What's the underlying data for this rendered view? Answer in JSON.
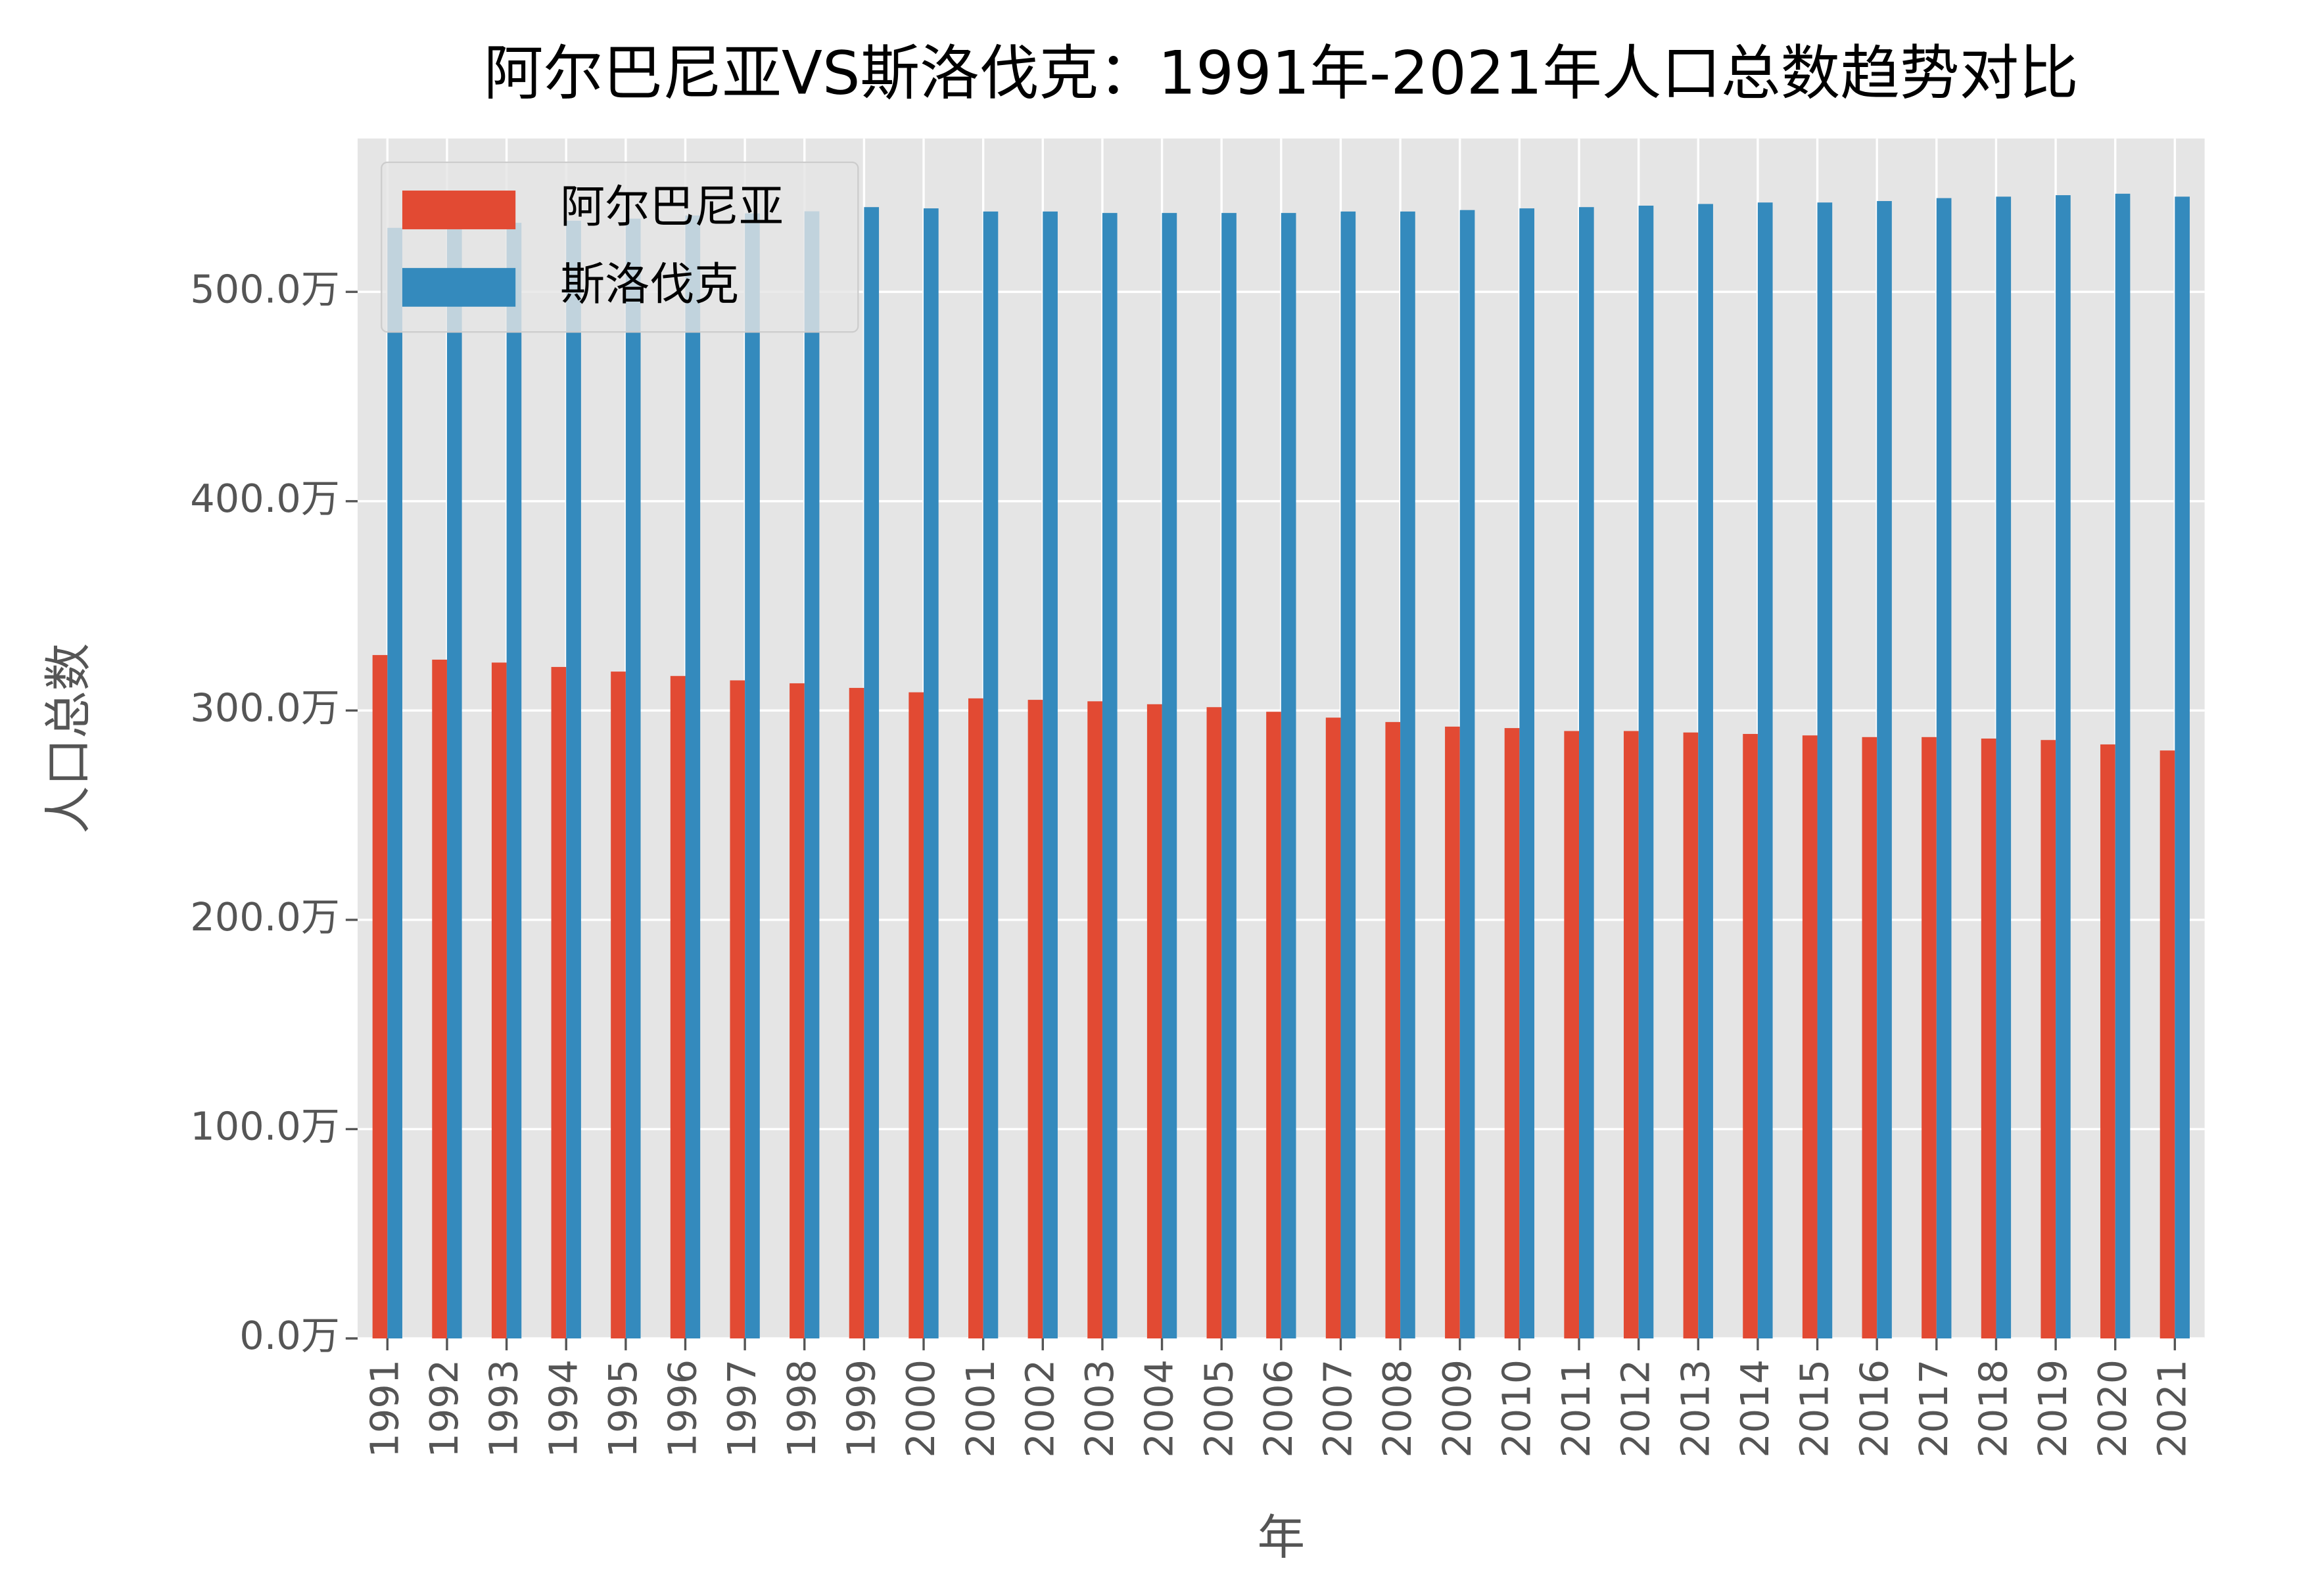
{
  "chart_data": {
    "type": "bar",
    "title": "阿尔巴尼亚VS斯洛伐克：1991年-2021年人口总数趋势对比",
    "x_label": "年",
    "y_label": "人口总数",
    "categories": [
      "1991",
      "1992",
      "1993",
      "1994",
      "1995",
      "1996",
      "1997",
      "1998",
      "1999",
      "2000",
      "2001",
      "2002",
      "2003",
      "2004",
      "2005",
      "2006",
      "2007",
      "2008",
      "2009",
      "2010",
      "2011",
      "2012",
      "2013",
      "2014",
      "2015",
      "2016",
      "2017",
      "2018",
      "2019",
      "2020",
      "2021"
    ],
    "series": [
      {
        "name": "阿尔巴尼亚",
        "color": "#E24A33",
        "values": [
          326.5,
          324.3,
          322.9,
          320.8,
          318.6,
          316.5,
          314.4,
          313.0,
          310.8,
          308.7,
          305.8,
          305.1,
          304.4,
          303.0,
          301.6,
          299.4,
          296.6,
          294.5,
          292.3,
          291.6,
          290.2,
          290.2,
          289.5,
          288.8,
          288.1,
          287.3,
          287.3,
          286.6,
          285.9,
          283.8,
          280.9
        ]
      },
      {
        "name": "斯洛伐克",
        "color": "#348ABD",
        "values": [
          530.6,
          531.5,
          533.0,
          534.0,
          535.0,
          536.5,
          537.5,
          538.5,
          540.5,
          539.9,
          538.4,
          538.4,
          537.7,
          537.7,
          537.7,
          537.7,
          538.4,
          538.4,
          539.1,
          539.9,
          540.5,
          541.2,
          542.0,
          542.7,
          542.7,
          543.4,
          544.8,
          545.5,
          546.2,
          546.9,
          545.5
        ]
      }
    ],
    "ylim": [
      0,
      573.3
    ],
    "yticks": [
      {
        "value": 0,
        "label": "0.0万"
      },
      {
        "value": 100,
        "label": "100.0万"
      },
      {
        "value": 200,
        "label": "200.0万"
      },
      {
        "value": 300,
        "label": "300.0万"
      },
      {
        "value": 400,
        "label": "400.0万"
      },
      {
        "value": 500,
        "label": "500.0万"
      }
    ],
    "grid": true,
    "legend": "upper left"
  }
}
